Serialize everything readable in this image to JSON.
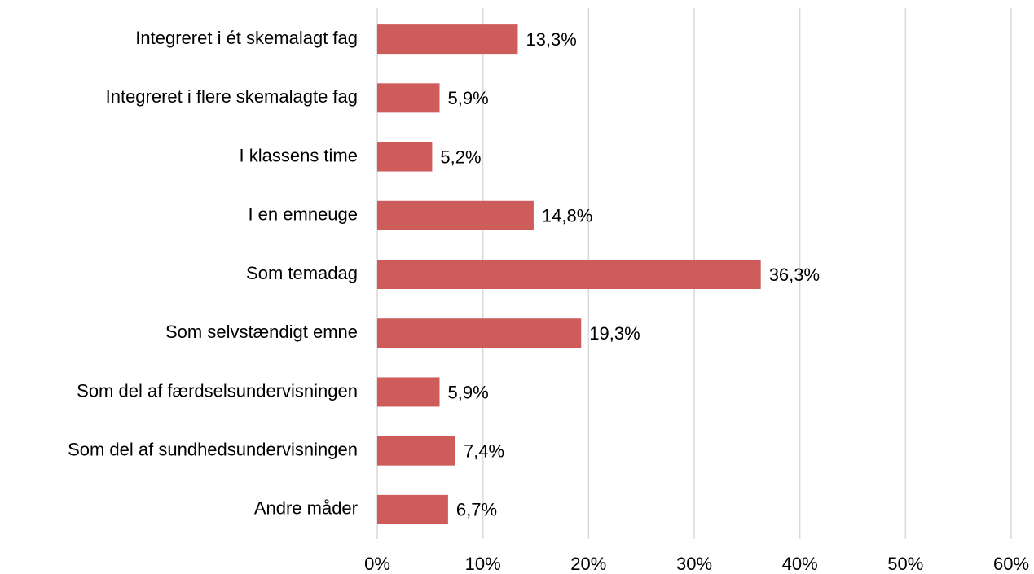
{
  "chart_data": {
    "type": "barh",
    "categories": [
      "Integreret i ét skemalagt fag",
      "Integreret i flere skemalagte fag",
      "I klassens time",
      "I en emneuge",
      "Som temadag",
      "Som selvstændigt emne",
      "Som del af færdselsundervisningen",
      "Som del af sundhedsundervisningen",
      "Andre måder"
    ],
    "values": [
      13.3,
      5.9,
      5.2,
      14.8,
      36.3,
      19.3,
      5.9,
      7.4,
      6.7
    ],
    "value_labels": [
      "13,3%",
      "5,9%",
      "5,2%",
      "14,8%",
      "36,3%",
      "19,3%",
      "5,9%",
      "7,4%",
      "6,7%"
    ],
    "color": "#cd5c5a",
    "xlim": [
      0,
      60
    ],
    "xticks": [
      {
        "value": 0,
        "label": "0%"
      },
      {
        "value": 10,
        "label": "10%"
      },
      {
        "value": 20,
        "label": "20%"
      },
      {
        "value": 30,
        "label": "30%"
      },
      {
        "value": 40,
        "label": "40%"
      },
      {
        "value": 50,
        "label": "50%"
      },
      {
        "value": 60,
        "label": "60%"
      }
    ],
    "grid": true
  }
}
